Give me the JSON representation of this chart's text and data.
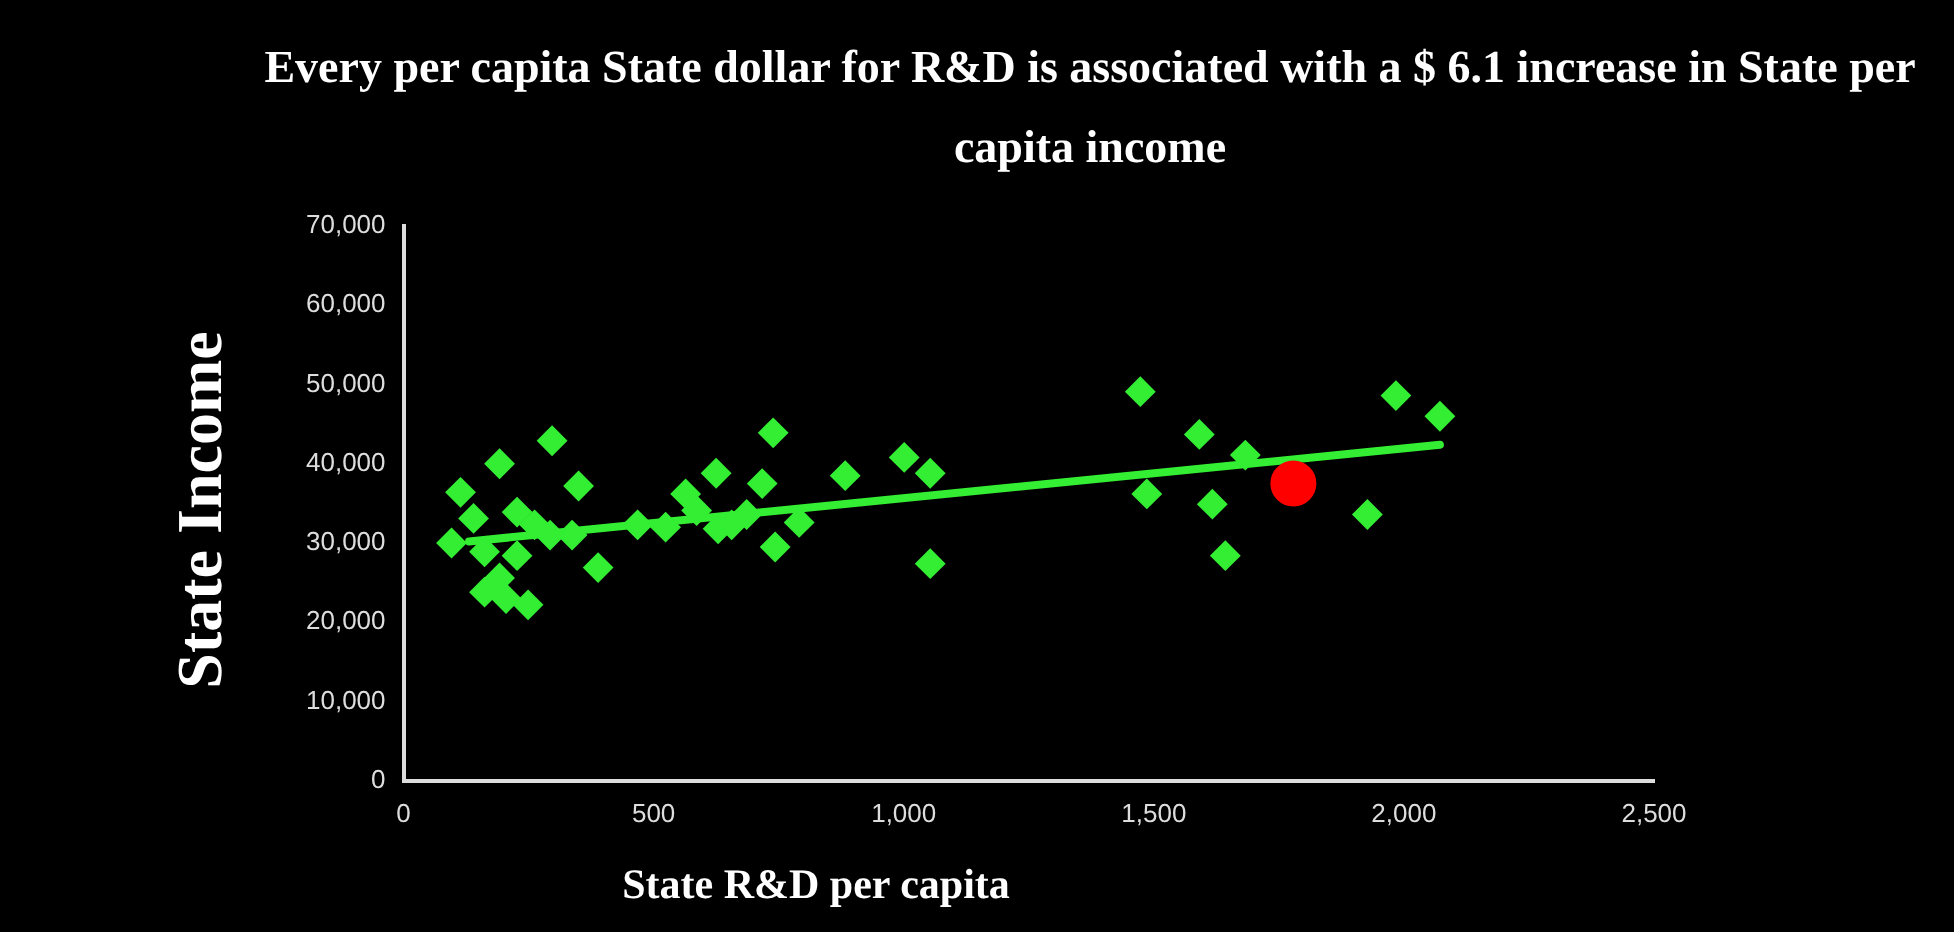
{
  "chart_data": {
    "type": "scatter",
    "title": "Every per capita State dollar for R&D is associated with a $ 6.1 increase in State per capita income",
    "xlabel": "State R&D per capita",
    "ylabel": "State Income",
    "xlim": [
      0,
      2500
    ],
    "xticks": [
      0,
      {
        "value": 500,
        "label": "500"
      },
      {
        "value": 1000,
        "label": "1,000"
      },
      {
        "value": 1500,
        "label": "1,500"
      },
      {
        "value": 2000,
        "label": "2,000"
      },
      {
        "value": 2500,
        "label": "2,500"
      }
    ],
    "ylim": [
      0,
      70000
    ],
    "yticks": [
      0,
      {
        "value": 10000,
        "label": "10,000"
      },
      {
        "value": 20000,
        "label": "20,000"
      },
      {
        "value": 30000,
        "label": "30,000"
      },
      {
        "value": 40000,
        "label": "40,000"
      },
      {
        "value": 50000,
        "label": "50,000"
      },
      {
        "value": 60000,
        "label": "60,000"
      },
      {
        "value": 70000,
        "label": "70,000"
      }
    ],
    "grid": false,
    "legend": false,
    "series": [
      {
        "marker": "diamond",
        "color": "#33ee33",
        "x": [
          297,
          192,
          114,
          350,
          140,
          227,
          96,
          262,
          162,
          192,
          162,
          249,
          205,
          389,
          337,
          468,
          524,
          564,
          625,
          586,
          629,
          656,
          739,
          717,
          743,
          791,
          883,
          1001,
          1053,
          1053,
          1473,
          1984,
          2072,
          1591,
          1683,
          1486,
          1617,
          1927,
          1643,
          227,
          293,
          686
        ],
        "values": [
          42900,
          40000,
          36400,
          37200,
          33100,
          33900,
          30000,
          32300,
          28900,
          25600,
          23800,
          22200,
          23000,
          26900,
          31000,
          32300,
          32000,
          36200,
          38800,
          34100,
          31800,
          32300,
          43900,
          37500,
          29500,
          32600,
          38500,
          40800,
          38800,
          27400,
          49100,
          48600,
          46000,
          43700,
          41100,
          36200,
          34900,
          33600,
          28400,
          28400,
          31000,
          33600
        ]
      },
      {
        "marker": "circle",
        "color": "#ff0000",
        "x": [
          1779
        ],
        "values": [
          37500
        ]
      },
      {
        "type": "line",
        "color": "#33ee33",
        "marker": "none",
        "line_style": "solid",
        "x": [
          131,
          2072
        ],
        "values": [
          30200,
          42400
        ]
      }
    ]
  }
}
